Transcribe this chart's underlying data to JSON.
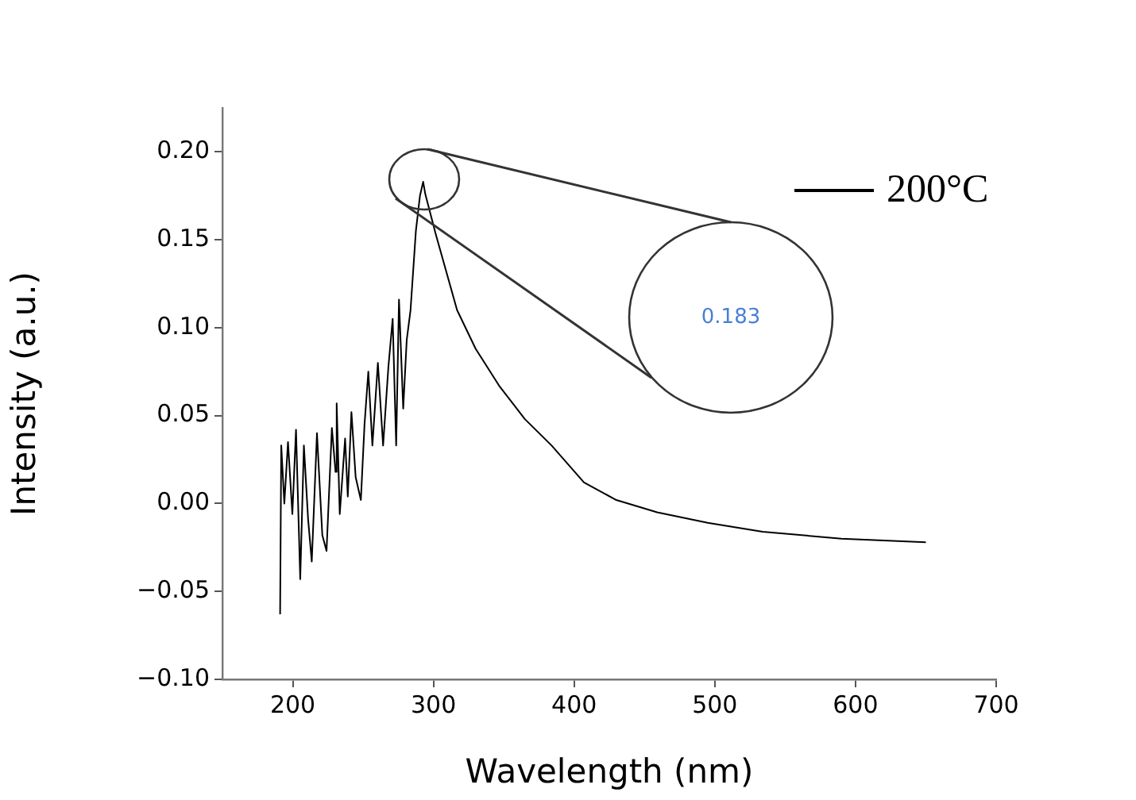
{
  "chart_data": {
    "type": "line",
    "xlabel": "Wavelength (nm)",
    "ylabel": "Intensity (a.u.)",
    "xlim": [
      150,
      700
    ],
    "xticks": [
      200,
      300,
      400,
      500,
      600,
      700
    ],
    "ylim": [
      -0.1,
      0.225
    ],
    "yticks": [
      {
        "value": -0.1,
        "label": "−0.10"
      },
      {
        "value": -0.05,
        "label": "−0.05"
      },
      {
        "value": 0,
        "label": "0.00"
      },
      {
        "value": 0.05,
        "label": "0.05"
      },
      {
        "value": 0.1,
        "label": "0.10"
      },
      {
        "value": 0.15,
        "label": "0.15"
      },
      {
        "value": 0.2,
        "label": "0.20"
      }
    ],
    "legend": "top right",
    "annotations": [
      "0.183"
    ],
    "series": [
      {
        "name": "200°C",
        "color": "#000000",
        "x": [
          191,
          191.8,
          194,
          196.6,
          199.7,
          202.3,
          205.3,
          207.9,
          210.9,
          213.5,
          217.2,
          221,
          224,
          227.8,
          230.4,
          231.2,
          233.4,
          237.2,
          239.1,
          241.7,
          244.7,
          248.4,
          251,
          253.7,
          256.6,
          260.5,
          264.2,
          268,
          271,
          273.5,
          275.5,
          278.5,
          281,
          283.7,
          287.5,
          290.4,
          292.7,
          294.2,
          301.7,
          316.8,
          330,
          346.7,
          365,
          384,
          407,
          430,
          459,
          495,
          534,
          590,
          650
        ],
        "values": [
          -0.063,
          0.033,
          0,
          0.035,
          -0.006,
          0.042,
          -0.043,
          0.033,
          -0.009,
          -0.033,
          0.04,
          -0.018,
          -0.027,
          0.043,
          0.018,
          0.057,
          -0.006,
          0.037,
          0.004,
          0.052,
          0.015,
          0.002,
          0.045,
          0.075,
          0.033,
          0.08,
          0.033,
          0.078,
          0.105,
          0.033,
          0.116,
          0.054,
          0.093,
          0.11,
          0.155,
          0.175,
          0.183,
          0.176,
          0.153,
          0.11,
          0.088,
          0.067,
          0.048,
          0.033,
          0.012,
          0.002,
          -0.005,
          -0.011,
          -0.016,
          -0.02,
          -0.022
        ]
      }
    ]
  }
}
